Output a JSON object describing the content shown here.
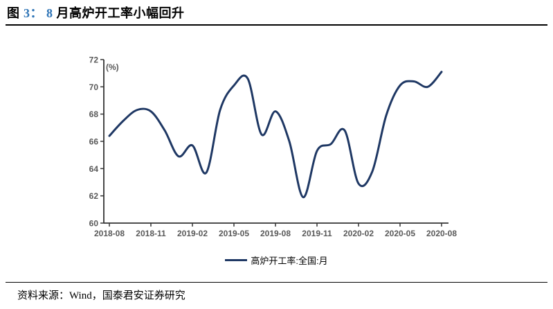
{
  "title": {
    "parts": [
      "图 ",
      "3： ",
      "8 ",
      "月高炉开工率小幅回升"
    ]
  },
  "chart_data": {
    "type": "line",
    "title": "8 月高炉开工率小幅回升",
    "ylabel": "(%)",
    "ylim": [
      60,
      72
    ],
    "yticks": [
      60,
      62,
      64,
      66,
      68,
      70,
      72
    ],
    "x": [
      "2018-08",
      "2018-09",
      "2018-10",
      "2018-11",
      "2018-12",
      "2019-01",
      "2019-02",
      "2019-03",
      "2019-04",
      "2019-05",
      "2019-06",
      "2019-07",
      "2019-08",
      "2019-09",
      "2019-10",
      "2019-11",
      "2019-12",
      "2020-01",
      "2020-02",
      "2020-03",
      "2020-04",
      "2020-05",
      "2020-06",
      "2020-07",
      "2020-08"
    ],
    "xticks_shown": [
      "2018-08",
      "2018-11",
      "2019-02",
      "2019-05",
      "2019-08",
      "2019-11",
      "2020-02",
      "2020-05",
      "2020-08"
    ],
    "series": [
      {
        "name": "高炉开工率:全国:月",
        "color": "#1F3864",
        "values": [
          66.4,
          67.5,
          68.3,
          68.2,
          66.8,
          64.9,
          65.7,
          63.7,
          68.3,
          70.1,
          70.6,
          66.5,
          68.2,
          66.0,
          61.9,
          65.3,
          65.8,
          66.8,
          62.9,
          63.8,
          67.9,
          70.1,
          70.4,
          70.0,
          71.1
        ]
      }
    ],
    "grid": false,
    "legend_position": "bottom",
    "axis_color": "#333333",
    "tick_label_color": "#595959"
  },
  "footer": {
    "text": "资料来源：Wind，国泰君安证券研究"
  }
}
